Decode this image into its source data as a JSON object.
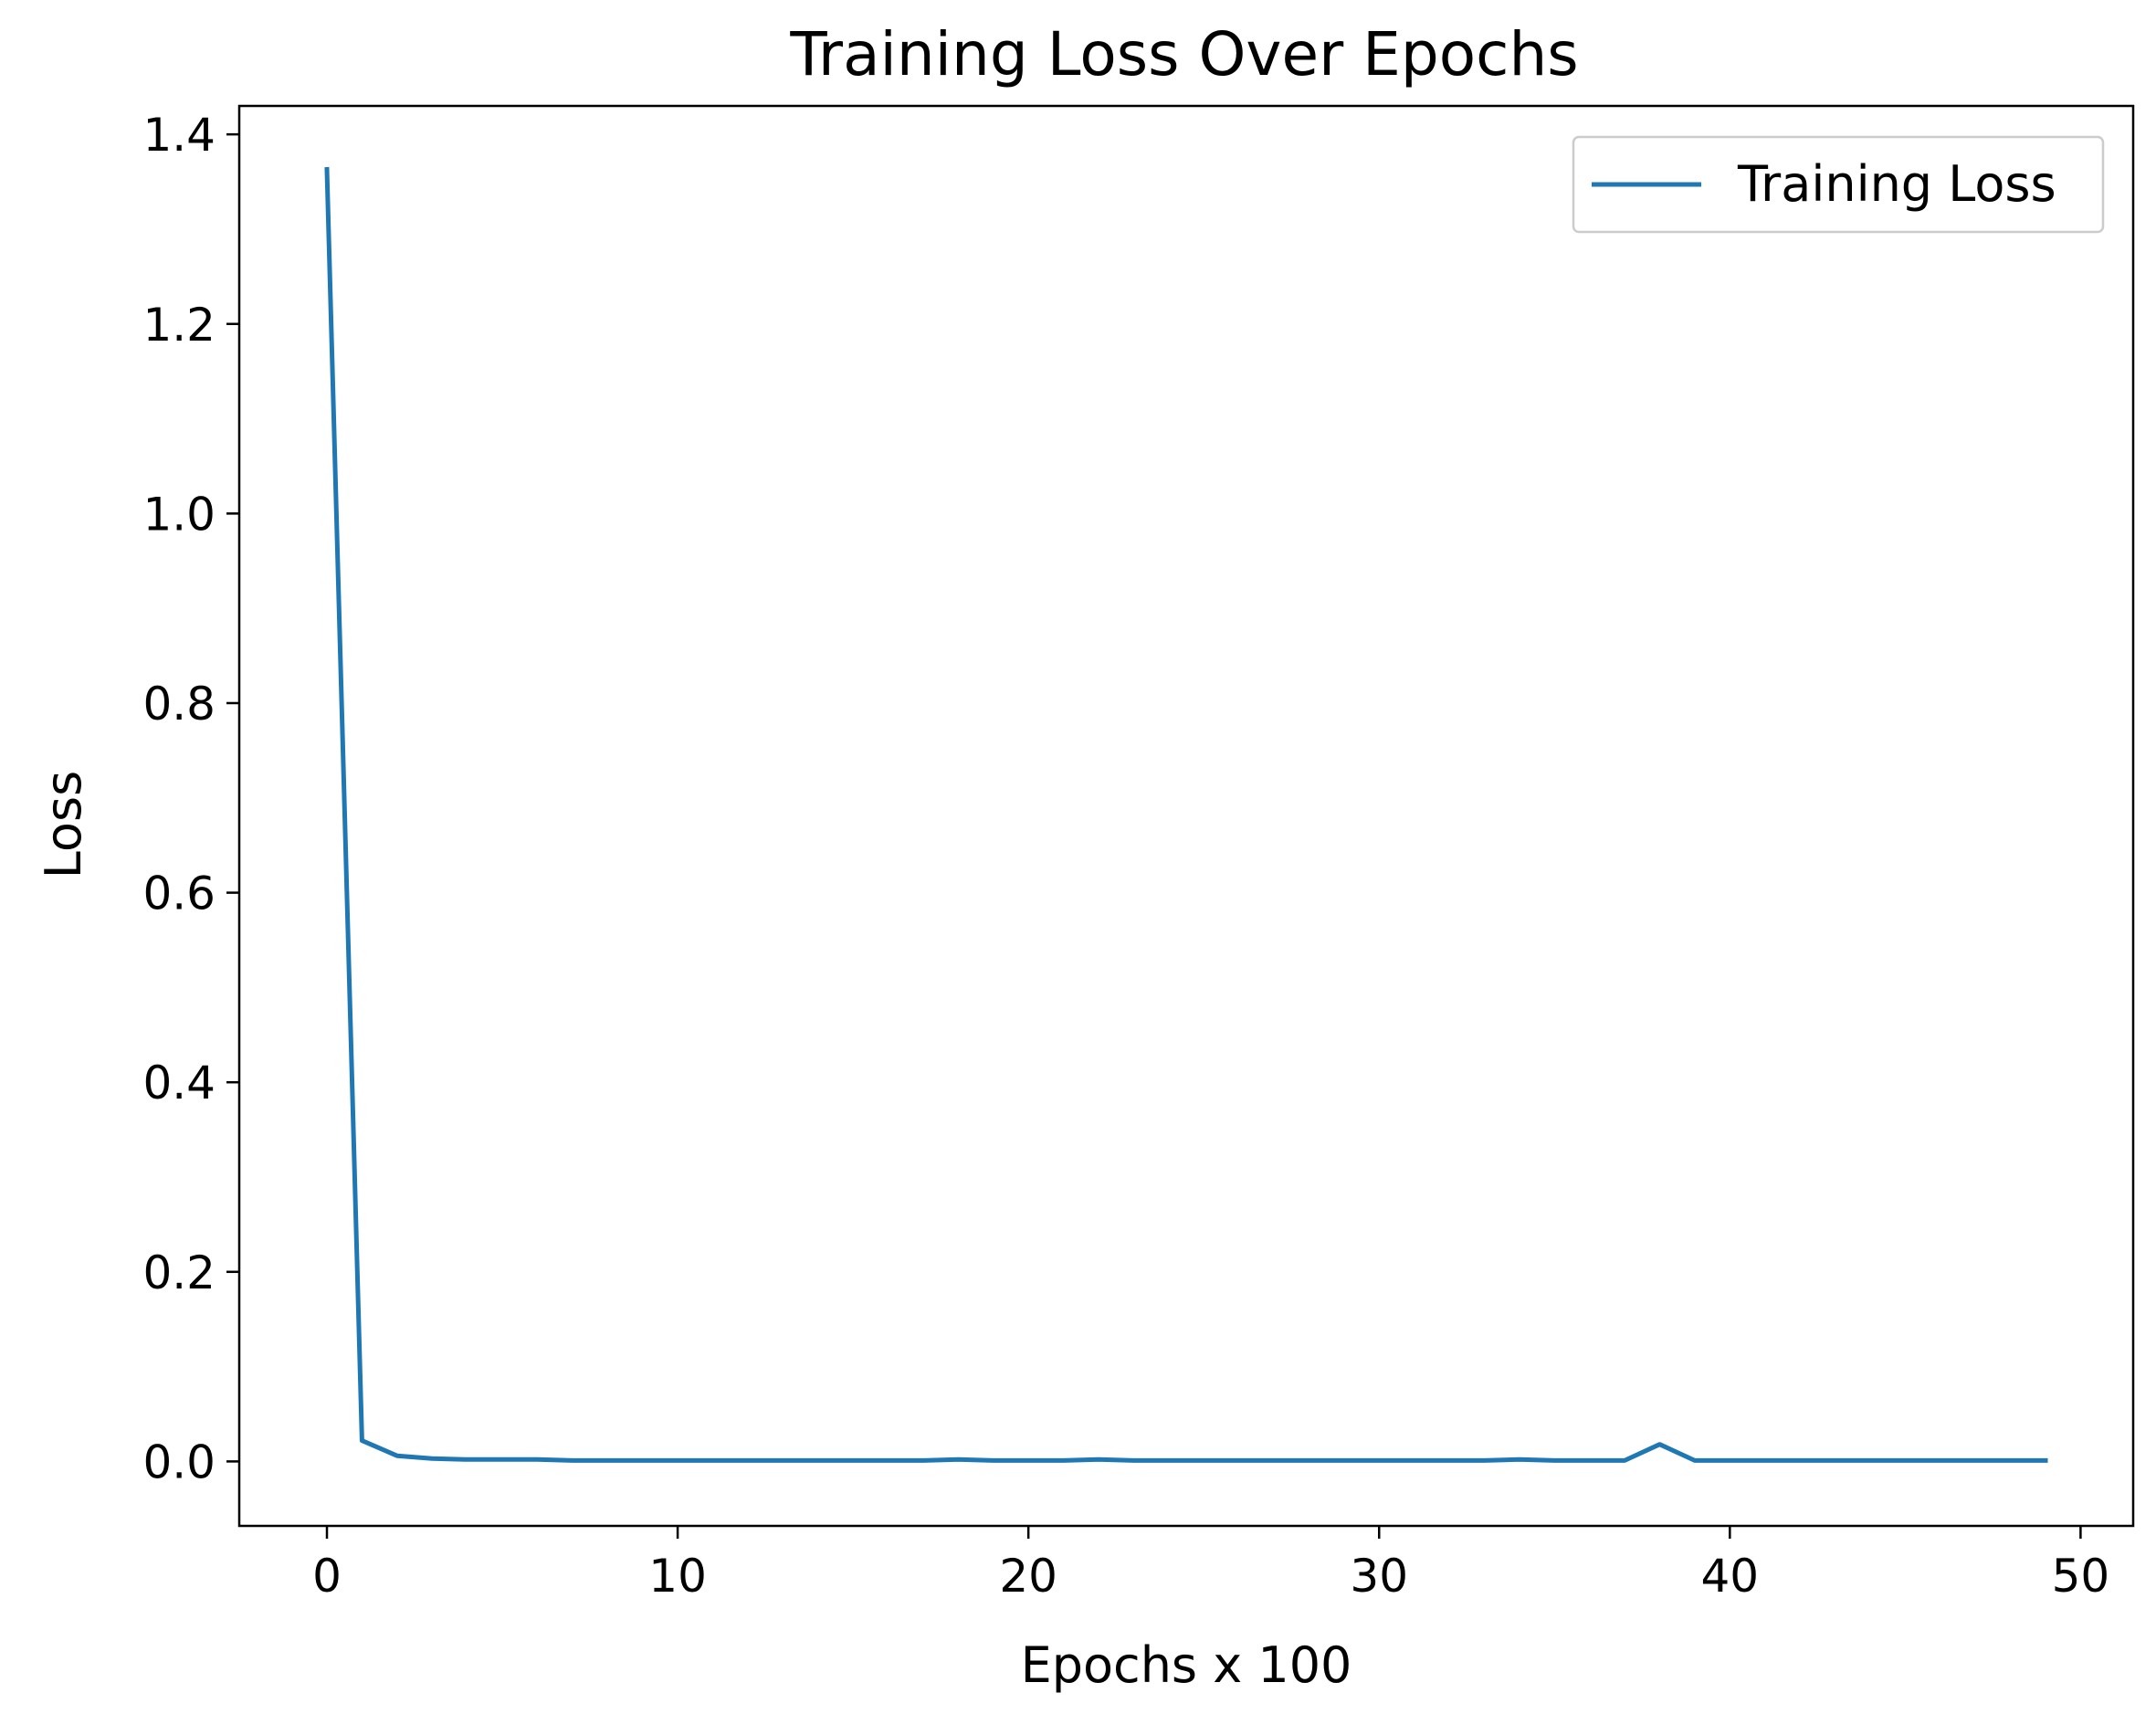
{
  "chart_data": {
    "type": "line",
    "title": "Training Loss Over Epochs",
    "xlabel": "Epochs x 100",
    "ylabel": "Loss",
    "xlim": [
      -2.5,
      51.5
    ],
    "ylim": [
      -0.068,
      1.43
    ],
    "xticks": [
      0,
      10,
      20,
      30,
      40,
      50
    ],
    "xtick_labels": [
      "0",
      "10",
      "20",
      "30",
      "40",
      "50"
    ],
    "yticks": [
      0.0,
      0.2,
      0.4,
      0.6,
      0.8,
      1.0,
      1.2,
      1.4
    ],
    "ytick_labels": [
      "0.0",
      "0.2",
      "0.4",
      "0.6",
      "0.8",
      "1.0",
      "1.2",
      "1.4"
    ],
    "grid": false,
    "legend_position": "top-right",
    "series": [
      {
        "name": "Training Loss",
        "color": "#1f77b4",
        "x": [
          0,
          1,
          2,
          3,
          4,
          5,
          6,
          7,
          8,
          9,
          10,
          11,
          12,
          13,
          14,
          15,
          16,
          17,
          18,
          19,
          20,
          21,
          22,
          23,
          24,
          25,
          26,
          27,
          28,
          29,
          30,
          31,
          32,
          33,
          34,
          35,
          36,
          37,
          38,
          39,
          40,
          41,
          42,
          43,
          44,
          45,
          46,
          47,
          48,
          49
        ],
        "y": [
          1.363,
          0.022,
          0.006,
          0.003,
          0.002,
          0.002,
          0.002,
          0.001,
          0.001,
          0.001,
          0.001,
          0.001,
          0.001,
          0.001,
          0.001,
          0.001,
          0.001,
          0.001,
          0.002,
          0.001,
          0.001,
          0.001,
          0.002,
          0.001,
          0.001,
          0.001,
          0.001,
          0.001,
          0.001,
          0.001,
          0.001,
          0.001,
          0.001,
          0.001,
          0.002,
          0.001,
          0.001,
          0.001,
          0.018,
          0.001,
          0.001,
          0.001,
          0.001,
          0.001,
          0.001,
          0.001,
          0.001,
          0.001,
          0.001,
          0.001
        ]
      }
    ]
  }
}
